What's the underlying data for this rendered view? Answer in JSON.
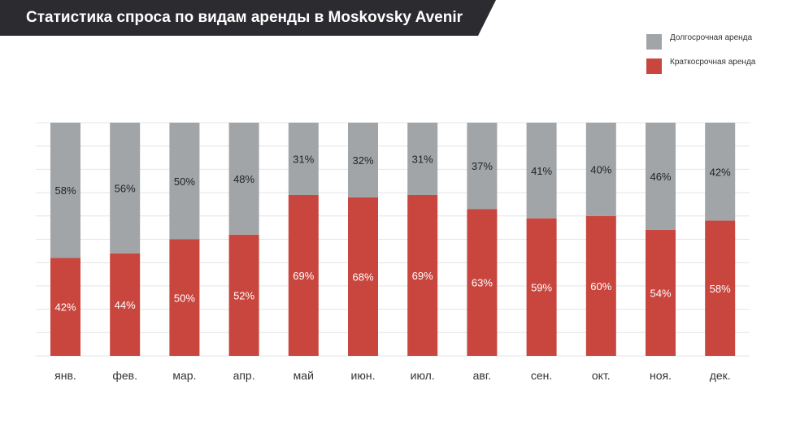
{
  "title": "Статистика спроса по видам аренды в Moskovsky Avenir",
  "colors": {
    "banner": "#2c2b30",
    "long_term": "#a2a5a8",
    "short_term": "#c9463e",
    "grid": "#e4e4e4"
  },
  "legend": [
    {
      "label": "Долгосрочная аренда",
      "color": "#a2a5a8"
    },
    {
      "label": "Краткосрочная аренда",
      "color": "#c9463e"
    }
  ],
  "chart_data": {
    "type": "bar",
    "stacked": true,
    "categories": [
      "янв.",
      "фев.",
      "мар.",
      "апр.",
      "май",
      "июн.",
      "июл.",
      "авг.",
      "сен.",
      "окт.",
      "ноя.",
      "дек."
    ],
    "series": [
      {
        "name": "Краткосрочная аренда",
        "values": [
          42,
          44,
          50,
          52,
          69,
          68,
          69,
          63,
          59,
          60,
          54,
          58
        ],
        "color": "#c9463e",
        "label_color": "#ffffff"
      },
      {
        "name": "Долгосрочная аренда",
        "values": [
          58,
          56,
          50,
          48,
          31,
          32,
          31,
          37,
          41,
          40,
          46,
          42
        ],
        "color": "#a2a5a8",
        "label_color": "#222222"
      }
    ],
    "value_suffix": "%",
    "ylim": [
      0,
      100
    ],
    "grid": true,
    "legend_position": "top-right"
  }
}
